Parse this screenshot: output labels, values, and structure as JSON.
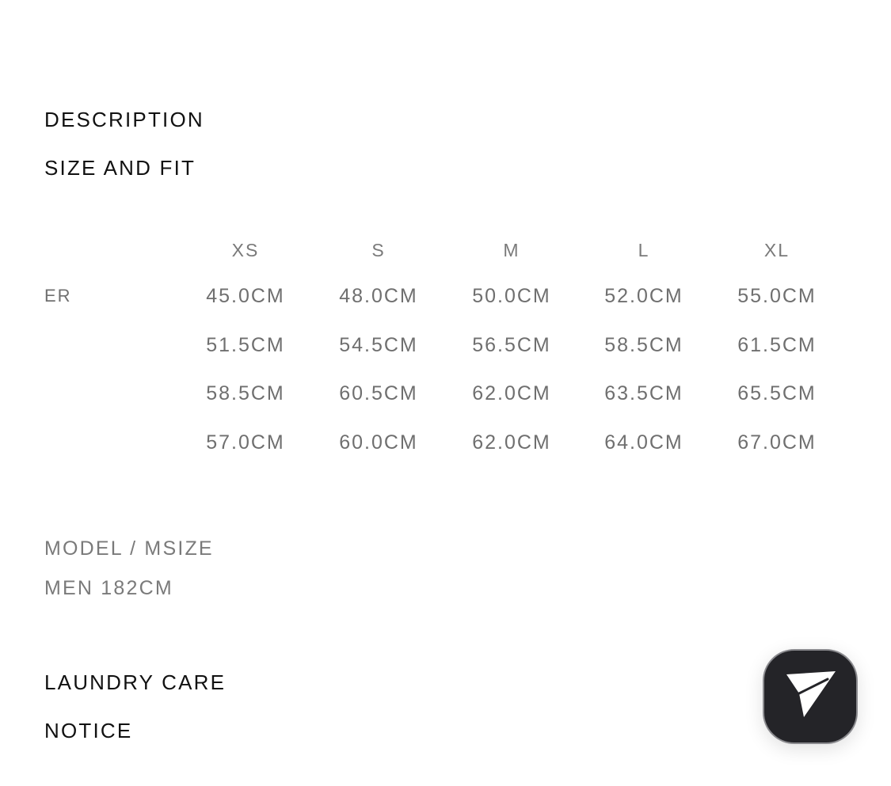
{
  "sections": {
    "description": "DESCRIPTION",
    "size_and_fit": "SIZE AND FIT",
    "laundry_care": "LAUNDRY CARE",
    "notice": "NOTICE"
  },
  "size_table": {
    "columns": [
      "XS",
      "S",
      "M",
      "L",
      "XL"
    ],
    "rows": [
      {
        "label": "ER",
        "values": [
          "45.0CM",
          "48.0CM",
          "50.0CM",
          "52.0CM",
          "55.0CM"
        ]
      },
      {
        "label": "",
        "values": [
          "51.5CM",
          "54.5CM",
          "56.5CM",
          "58.5CM",
          "61.5CM"
        ]
      },
      {
        "label": "",
        "values": [
          "58.5CM",
          "60.5CM",
          "62.0CM",
          "63.5CM",
          "65.5CM"
        ]
      },
      {
        "label": "",
        "values": [
          "57.0CM",
          "60.0CM",
          "62.0CM",
          "64.0CM",
          "67.0CM"
        ]
      }
    ]
  },
  "model": {
    "line1": "MODEL / MSIZE",
    "line2": "MEN 182CM"
  },
  "fab": {
    "icon": "paper-plane-icon",
    "color": "#242428"
  }
}
